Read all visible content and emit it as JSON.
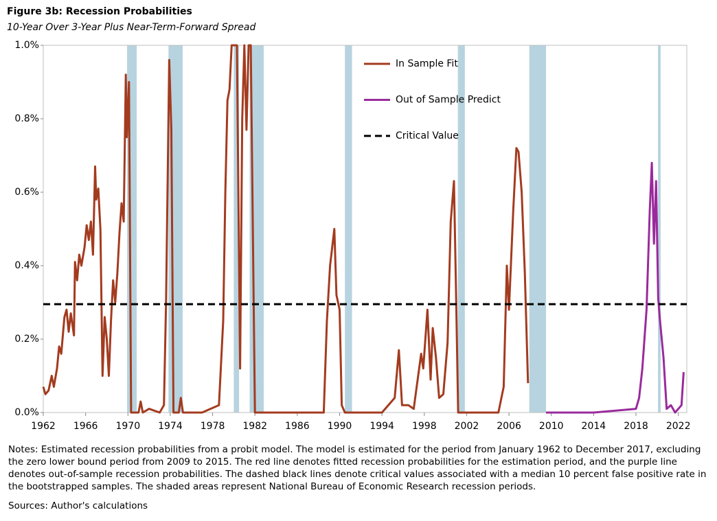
{
  "chart_data": {
    "type": "line",
    "title": "Figure 3b: Recession Probabilities",
    "subtitle": "10-Year Over 3-Year Plus Near-Term-Forward Spread",
    "xlim": [
      1962,
      2022.8
    ],
    "xticks": [
      1962,
      1966,
      1970,
      1974,
      1978,
      1982,
      1986,
      1990,
      1994,
      1998,
      2002,
      2006,
      2010,
      2014,
      2018,
      2022
    ],
    "ylim": [
      0,
      1.0
    ],
    "yticks": [
      {
        "value": 0,
        "label": "0.0%"
      },
      {
        "value": 0.2,
        "label": "0.2%"
      },
      {
        "value": 0.4,
        "label": "0.4%"
      },
      {
        "value": 0.6,
        "label": "0.6%"
      },
      {
        "value": 0.8,
        "label": "0.8%"
      },
      {
        "value": 1.0,
        "label": "1.0%"
      }
    ],
    "recession_color": "#b7d3df",
    "recessions": [
      [
        1969.92,
        1970.83
      ],
      [
        1973.83,
        1975.17
      ],
      [
        1980.0,
        1980.5
      ],
      [
        1981.5,
        1982.83
      ],
      [
        1990.5,
        1991.17
      ],
      [
        2001.17,
        2001.83
      ],
      [
        2007.92,
        2009.5
      ],
      [
        2020.08,
        2020.33
      ]
    ],
    "series": [
      {
        "name": "In Sample Fit",
        "color": "#a33b1f",
        "x": [
          1962.0,
          1962.2,
          1962.5,
          1962.8,
          1963.0,
          1963.3,
          1963.5,
          1963.7,
          1964.0,
          1964.2,
          1964.4,
          1964.6,
          1964.9,
          1965.0,
          1965.2,
          1965.4,
          1965.6,
          1965.9,
          1966.1,
          1966.3,
          1966.5,
          1966.7,
          1966.9,
          1967.0,
          1967.2,
          1967.4,
          1967.6,
          1967.8,
          1968.0,
          1968.2,
          1968.4,
          1968.6,
          1968.8,
          1969.0,
          1969.2,
          1969.4,
          1969.6,
          1969.8,
          1969.9,
          1970.1,
          1970.3,
          1970.6,
          1971.0,
          1971.2,
          1971.4,
          1972.0,
          1973.0,
          1973.4,
          1973.6,
          1973.9,
          1974.1,
          1974.3,
          1974.8,
          1975.0,
          1975.2,
          1977.0,
          1978.6,
          1979.0,
          1979.2,
          1979.4,
          1979.6,
          1979.8,
          1980.3,
          1980.6,
          1980.8,
          1981.0,
          1981.2,
          1981.4,
          1981.6,
          1982.0,
          1985.0,
          1988.5,
          1988.8,
          1989.1,
          1989.3,
          1989.5,
          1989.7,
          1990.0,
          1990.2,
          1990.5,
          1994.0,
          1995.2,
          1995.6,
          1995.9,
          1996.5,
          1997.0,
          1997.7,
          1997.9,
          1998.3,
          1998.6,
          1998.8,
          1999.1,
          1999.4,
          1999.8,
          2000.2,
          2000.5,
          2000.8,
          2001.0,
          2001.2,
          2003.0,
          2005.0,
          2005.5,
          2005.8,
          2006.0,
          2006.4,
          2006.7,
          2006.9,
          2007.2,
          2007.5,
          2007.8
        ],
        "values": [
          0.07,
          0.05,
          0.06,
          0.1,
          0.07,
          0.12,
          0.18,
          0.16,
          0.26,
          0.28,
          0.22,
          0.27,
          0.21,
          0.41,
          0.36,
          0.43,
          0.4,
          0.45,
          0.51,
          0.47,
          0.52,
          0.43,
          0.67,
          0.58,
          0.61,
          0.5,
          0.1,
          0.26,
          0.2,
          0.1,
          0.25,
          0.36,
          0.3,
          0.38,
          0.49,
          0.57,
          0.52,
          0.92,
          0.75,
          0.9,
          0.0,
          0.0,
          0.0,
          0.03,
          0.0,
          0.01,
          0.0,
          0.02,
          0.3,
          0.96,
          0.77,
          0.0,
          0.0,
          0.04,
          0.0,
          0.0,
          0.02,
          0.25,
          0.6,
          0.85,
          0.88,
          1.0,
          1.0,
          0.12,
          0.8,
          1.0,
          0.77,
          1.0,
          1.0,
          0.0,
          0.0,
          0.0,
          0.25,
          0.4,
          0.45,
          0.5,
          0.32,
          0.28,
          0.02,
          0.0,
          0.0,
          0.04,
          0.17,
          0.02,
          0.02,
          0.01,
          0.16,
          0.12,
          0.28,
          0.09,
          0.23,
          0.15,
          0.04,
          0.05,
          0.19,
          0.52,
          0.63,
          0.33,
          0.0,
          0.0,
          0.0,
          0.07,
          0.4,
          0.28,
          0.55,
          0.72,
          0.71,
          0.6,
          0.38,
          0.08
        ]
      },
      {
        "name": "Out of Sample Predict",
        "color": "#9a2a9c",
        "x": [
          2009.5,
          2014.0,
          2018.0,
          2018.3,
          2018.6,
          2019.0,
          2019.3,
          2019.5,
          2019.7,
          2019.9,
          2020.1,
          2020.3,
          2020.6,
          2020.9,
          2021.3,
          2021.7,
          2022.3,
          2022.5
        ],
        "values": [
          0.0,
          0.0,
          0.01,
          0.04,
          0.12,
          0.28,
          0.55,
          0.68,
          0.46,
          0.63,
          0.31,
          0.24,
          0.15,
          0.01,
          0.02,
          0.0,
          0.02,
          0.11
        ]
      }
    ],
    "critical_value": {
      "name": "Critical Value",
      "value": 0.295,
      "color": "#000000"
    },
    "notes": "Notes: Estimated recession probabilities from a probit model. The model is estimated for the period from January 1962 to December 2017, excluding the zero lower bound period from 2009 to 2015. The red line denotes fitted recession probabilities for the estimation period, and the purple line denotes out-of-sample recession probabilities. The dashed black lines denote critical values associated with a median 10 percent false positive rate in the bootstrapped samples. The shaded areas represent National Bureau of Economic Research recession periods.",
    "sources": "Sources: Author's calculations"
  }
}
